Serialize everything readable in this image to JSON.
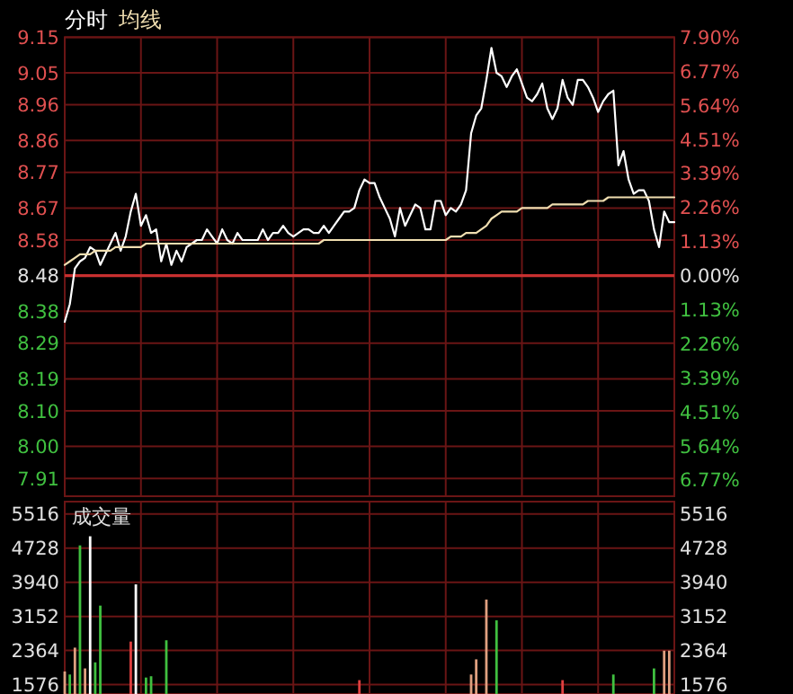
{
  "chart_data": [
    {
      "type": "line",
      "legend": "top left",
      "grid": true,
      "tick_labels": "y",
      "categories": [
        null,
        null,
        null,
        null,
        null,
        null,
        null,
        null,
        null,
        null,
        null,
        null,
        null,
        null,
        null,
        null,
        null,
        null,
        null,
        null,
        null,
        null,
        null,
        null,
        null,
        null,
        null,
        null,
        null,
        null,
        null,
        null,
        null,
        null,
        null,
        null,
        null,
        null,
        null,
        null,
        null,
        null,
        null,
        null,
        null,
        null,
        null,
        null,
        null,
        null,
        null,
        null,
        null,
        null,
        null,
        null,
        null,
        null,
        null,
        null,
        null,
        null,
        null,
        null,
        null,
        null,
        null,
        null,
        null,
        null,
        null,
        null,
        null,
        null,
        null,
        null,
        null,
        null,
        null,
        null,
        null,
        null,
        null,
        null,
        null,
        null,
        null,
        null,
        null,
        null,
        null,
        null,
        null,
        null,
        null,
        null,
        null,
        null,
        null,
        null,
        null,
        null,
        null,
        null,
        null,
        null,
        null,
        null,
        null,
        null,
        null,
        null,
        null,
        null,
        null,
        null,
        null,
        null,
        null,
        null,
        null
      ],
      "ylim": [
        7.86,
        9.15
      ],
      "yticks": [
        9.15,
        9.05,
        8.96,
        8.86,
        8.77,
        8.67,
        8.58,
        8.48,
        8.38,
        8.29,
        8.19,
        {
          "value": 8.1,
          "label": "8.10"
        },
        {
          "value": 8.0,
          "label": "8.00"
        },
        7.91
      ],
      "y2lim": [
        -7.31,
        7.9
      ],
      "y2ticks": [
        {
          "value": 7.9,
          "label": "7.90%"
        },
        {
          "value": 6.77,
          "label": "6.77%"
        },
        {
          "value": 5.64,
          "label": "5.64%"
        },
        {
          "value": 4.51,
          "label": "4.51%"
        },
        {
          "value": 3.39,
          "label": "3.39%"
        },
        {
          "value": 2.26,
          "label": "2.26%"
        },
        {
          "value": 1.13,
          "label": "1.13%"
        },
        {
          "value": 0,
          "label": "0.00%"
        },
        {
          "value": -1.13,
          "label": "1.13%"
        },
        {
          "value": -2.26,
          "label": "2.26%"
        },
        {
          "value": -3.39,
          "label": "3.39%"
        },
        {
          "value": -4.51,
          "label": "4.51%"
        },
        {
          "value": -5.64,
          "label": "5.64%"
        },
        {
          "value": -6.77,
          "label": "6.77%"
        }
      ],
      "ref_lines": [
        {
          "axis": "y",
          "value": 8.48,
          "color": "#c83030"
        }
      ],
      "series": [
        {
          "name": "分时",
          "color": "#ffffff",
          "values": [
            8.35,
            8.4,
            8.5,
            8.52,
            8.53,
            8.56,
            8.55,
            8.51,
            8.54,
            8.57,
            8.6,
            8.55,
            8.59,
            8.66,
            8.71,
            8.62,
            8.65,
            8.6,
            8.61,
            8.52,
            8.57,
            8.51,
            8.55,
            8.52,
            8.56,
            8.57,
            8.58,
            8.58,
            8.61,
            8.59,
            8.57,
            8.61,
            8.58,
            8.57,
            8.6,
            8.58,
            8.58,
            8.58,
            8.58,
            8.61,
            8.58,
            8.6,
            8.6,
            8.62,
            8.6,
            8.59,
            8.6,
            8.61,
            8.61,
            8.6,
            8.6,
            8.62,
            8.6,
            8.62,
            8.64,
            8.66,
            8.66,
            8.67,
            8.72,
            8.75,
            8.74,
            8.74,
            8.7,
            8.67,
            8.64,
            8.59,
            8.67,
            8.62,
            8.65,
            8.68,
            8.67,
            8.61,
            8.61,
            8.69,
            8.69,
            8.65,
            8.67,
            8.66,
            8.68,
            8.72,
            8.88,
            8.93,
            8.95,
            9.03,
            9.12,
            9.05,
            9.04,
            9.01,
            9.04,
            9.06,
            9.02,
            8.98,
            8.97,
            8.99,
            9.02,
            8.95,
            8.92,
            8.95,
            9.03,
            8.98,
            8.96,
            9.03,
            9.03,
            9.01,
            8.98,
            8.94,
            8.97,
            8.99,
            9.0,
            8.79,
            8.83,
            8.75,
            8.71,
            8.72,
            8.72,
            8.69,
            8.61,
            8.56,
            8.66,
            8.63,
            8.63
          ]
        },
        {
          "name": "均线",
          "color": "#f0deb0",
          "values": [
            8.51,
            8.52,
            8.53,
            8.54,
            8.54,
            8.54,
            8.55,
            8.55,
            8.55,
            8.55,
            8.56,
            8.56,
            8.56,
            8.56,
            8.56,
            8.56,
            8.57,
            8.57,
            8.57,
            8.57,
            8.57,
            8.57,
            8.57,
            8.57,
            8.57,
            8.57,
            8.57,
            8.57,
            8.57,
            8.57,
            8.57,
            8.57,
            8.57,
            8.57,
            8.57,
            8.57,
            8.57,
            8.57,
            8.57,
            8.57,
            8.57,
            8.57,
            8.57,
            8.57,
            8.57,
            8.57,
            8.57,
            8.57,
            8.57,
            8.57,
            8.57,
            8.58,
            8.58,
            8.58,
            8.58,
            8.58,
            8.58,
            8.58,
            8.58,
            8.58,
            8.58,
            8.58,
            8.58,
            8.58,
            8.58,
            8.58,
            8.58,
            8.58,
            8.58,
            8.58,
            8.58,
            8.58,
            8.58,
            8.58,
            8.58,
            8.58,
            8.59,
            8.59,
            8.59,
            8.6,
            8.6,
            8.6,
            8.61,
            8.62,
            8.64,
            8.65,
            8.66,
            8.66,
            8.66,
            8.66,
            8.67,
            8.67,
            8.67,
            8.67,
            8.67,
            8.67,
            8.68,
            8.68,
            8.68,
            8.68,
            8.68,
            8.68,
            8.68,
            8.69,
            8.69,
            8.69,
            8.69,
            8.7,
            8.7,
            8.7,
            8.7,
            8.7,
            8.7,
            8.7,
            8.7,
            8.7,
            8.7,
            8.7,
            8.7,
            8.7,
            8.7
          ]
        }
      ]
    },
    {
      "type": "bar",
      "title": "成交量",
      "grid": true,
      "tick_labels": "y",
      "categories": [
        null,
        null,
        null,
        null,
        null,
        null,
        null,
        null,
        null,
        null,
        null,
        null,
        null,
        null,
        null,
        null,
        null,
        null,
        null,
        null,
        null,
        null,
        null,
        null,
        null,
        null,
        null,
        null,
        null,
        null,
        null,
        null,
        null,
        null,
        null,
        null,
        null,
        null,
        null,
        null,
        null,
        null,
        null,
        null,
        null,
        null,
        null,
        null,
        null,
        null,
        null,
        null,
        null,
        null,
        null,
        null,
        null,
        null,
        null,
        null,
        null,
        null,
        null,
        null,
        null,
        null,
        null,
        null,
        null,
        null,
        null,
        null,
        null,
        null,
        null,
        null,
        null,
        null,
        null,
        null,
        null,
        null,
        null,
        null,
        null,
        null,
        null,
        null,
        null,
        null,
        null,
        null,
        null,
        null,
        null,
        null,
        null,
        null,
        null,
        null,
        null,
        null,
        null,
        null,
        null,
        null,
        null,
        null,
        null,
        null,
        null,
        null,
        null,
        null,
        null,
        null,
        null,
        null,
        null,
        null,
        null
      ],
      "ylim": [
        1360,
        5800
      ],
      "yticks": [
        5516,
        4728,
        3940,
        3152,
        2364,
        1576
      ],
      "y2lim": [
        1360,
        5800
      ],
      "y2ticks": [
        5516,
        4728,
        3940,
        3152,
        2364,
        1576
      ],
      "values": [
        1880,
        1810,
        2430,
        4790,
        1950,
        5000,
        2090,
        3400,
        null,
        null,
        null,
        null,
        null,
        2570,
        3890,
        null,
        1740,
        1770,
        null,
        null,
        2600,
        null,
        null,
        null,
        null,
        null,
        null,
        null,
        null,
        null,
        null,
        null,
        null,
        null,
        null,
        null,
        null,
        null,
        null,
        null,
        null,
        null,
        null,
        null,
        null,
        null,
        null,
        null,
        null,
        null,
        null,
        null,
        null,
        null,
        null,
        null,
        null,
        null,
        1680,
        null,
        null,
        null,
        null,
        null,
        null,
        null,
        null,
        null,
        null,
        null,
        null,
        null,
        null,
        null,
        null,
        null,
        null,
        null,
        null,
        null,
        1810,
        2160,
        null,
        3540,
        null,
        3060,
        null,
        null,
        null,
        null,
        null,
        null,
        null,
        null,
        null,
        null,
        null,
        null,
        1680,
        null,
        null,
        null,
        null,
        null,
        null,
        null,
        null,
        null,
        1810,
        null,
        null,
        null,
        null,
        null,
        null,
        null,
        1950,
        null,
        2360,
        2360,
        null
      ],
      "colors": [
        "#e0a080",
        "#40c040",
        "#e0a080",
        "#40c040",
        "#e0a080",
        "#ffffff",
        "#40c040",
        "#40c040",
        null,
        null,
        null,
        null,
        null,
        "#e04040",
        "#ffffff",
        null,
        "#40c040",
        "#40c040",
        null,
        null,
        "#40c040",
        null,
        null,
        null,
        null,
        null,
        null,
        null,
        null,
        null,
        null,
        null,
        null,
        null,
        null,
        null,
        null,
        null,
        null,
        null,
        null,
        null,
        null,
        null,
        null,
        null,
        null,
        null,
        null,
        null,
        null,
        null,
        null,
        null,
        null,
        null,
        null,
        null,
        "#e04040",
        null,
        null,
        null,
        null,
        null,
        null,
        null,
        null,
        null,
        null,
        null,
        null,
        null,
        null,
        null,
        null,
        null,
        null,
        null,
        null,
        null,
        "#e0a080",
        "#e0a080",
        null,
        "#e0a080",
        null,
        "#40c040",
        null,
        null,
        null,
        null,
        null,
        null,
        null,
        null,
        null,
        null,
        null,
        null,
        "#e04040",
        null,
        null,
        null,
        null,
        null,
        null,
        null,
        null,
        null,
        "#40c040",
        null,
        null,
        null,
        null,
        null,
        null,
        null,
        "#40c040",
        null,
        "#e0a080",
        "#e0a080",
        null
      ]
    }
  ]
}
